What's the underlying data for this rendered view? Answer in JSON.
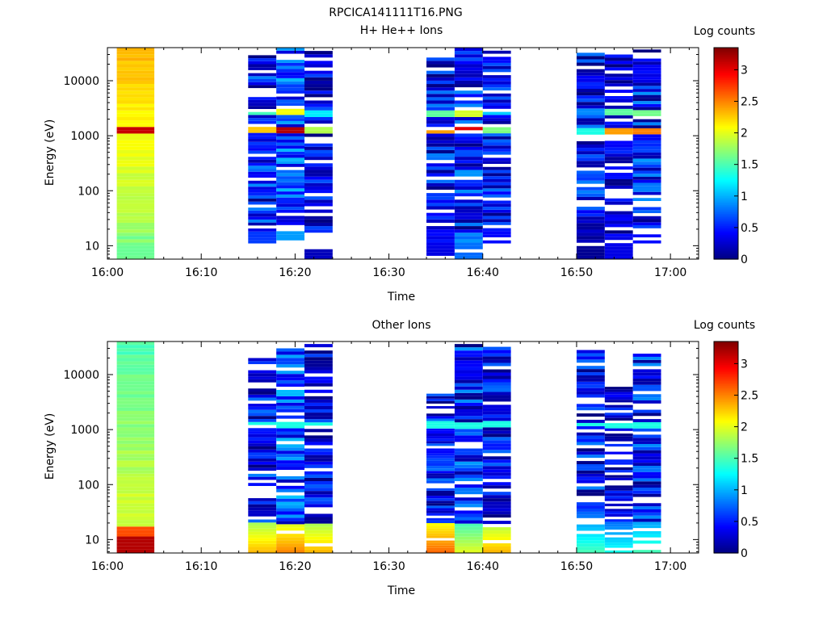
{
  "title": "RPCICA141111T16.PNG",
  "chart_data": [
    {
      "type": "heatmap",
      "title": "H+ He++ Ions",
      "xlabel": "Time",
      "ylabel": "Energy (eV)",
      "y_scale": "log",
      "xlim": [
        "16:00",
        "17:03"
      ],
      "ylim": [
        5.7,
        40000
      ],
      "x_ticks": [
        "16:00",
        "16:10",
        "16:20",
        "16:30",
        "16:40",
        "16:50",
        "17:00"
      ],
      "y_ticks": [
        "10",
        "100",
        "1000",
        "10000"
      ],
      "colorbar": {
        "label": "Log counts",
        "range": [
          0,
          3.35
        ],
        "ticks": [
          "0",
          "0.5",
          "1",
          "1.5",
          "2",
          "2.5",
          "3"
        ]
      },
      "columns": [
        {
          "t_start": "16:01",
          "t_end": "16:05",
          "e_min": 5.7,
          "e_max": 40000
        },
        {
          "t_start": "16:15",
          "t_end": "16:18",
          "e_min": 11,
          "e_max": 33000
        },
        {
          "t_start": "16:18",
          "t_end": "16:21",
          "e_min": 11,
          "e_max": 40000
        },
        {
          "t_start": "16:21",
          "t_end": "16:24",
          "e_min": 5.7,
          "e_max": 40000
        },
        {
          "t_start": "16:34",
          "t_end": "16:37",
          "e_min": 5.7,
          "e_max": 40000
        },
        {
          "t_start": "16:37",
          "t_end": "16:40",
          "e_min": 5.7,
          "e_max": 40000
        },
        {
          "t_start": "16:40",
          "t_end": "16:43",
          "e_min": 11,
          "e_max": 40000
        },
        {
          "t_start": "16:50",
          "t_end": "16:53",
          "e_min": 5.7,
          "e_max": 37000
        },
        {
          "t_start": "16:53",
          "t_end": "16:56",
          "e_min": 5.7,
          "e_max": 30000
        },
        {
          "t_start": "16:56",
          "t_end": "16:59",
          "e_min": 11,
          "e_max": 37000
        }
      ]
    },
    {
      "type": "heatmap",
      "title": "Other Ions",
      "xlabel": "Time",
      "ylabel": "Energy (eV)",
      "y_scale": "log",
      "xlim": [
        "16:00",
        "17:03"
      ],
      "ylim": [
        5.7,
        40000
      ],
      "x_ticks": [
        "16:00",
        "16:10",
        "16:20",
        "16:30",
        "16:40",
        "16:50",
        "17:00"
      ],
      "y_ticks": [
        "10",
        "100",
        "1000",
        "10000"
      ],
      "colorbar": {
        "label": "Log counts",
        "range": [
          0,
          3.35
        ],
        "ticks": [
          "0",
          "0.5",
          "1",
          "1.5",
          "2",
          "2.5",
          "3"
        ]
      },
      "columns": [
        {
          "t_start": "16:01",
          "t_end": "16:05",
          "e_min": 5.7,
          "e_max": 40000
        },
        {
          "t_start": "16:15",
          "t_end": "16:18",
          "e_min": 5.7,
          "e_max": 20000
        },
        {
          "t_start": "16:18",
          "t_end": "16:21",
          "e_min": 5.7,
          "e_max": 30000
        },
        {
          "t_start": "16:21",
          "t_end": "16:24",
          "e_min": 5.7,
          "e_max": 36000
        },
        {
          "t_start": "16:34",
          "t_end": "16:37",
          "e_min": 5.7,
          "e_max": 4500
        },
        {
          "t_start": "16:37",
          "t_end": "16:40",
          "e_min": 5.7,
          "e_max": 36000
        },
        {
          "t_start": "16:40",
          "t_end": "16:43",
          "e_min": 5.7,
          "e_max": 32000
        },
        {
          "t_start": "16:50",
          "t_end": "16:53",
          "e_min": 5.7,
          "e_max": 28000
        },
        {
          "t_start": "16:53",
          "t_end": "16:56",
          "e_min": 5.7,
          "e_max": 6000
        },
        {
          "t_start": "16:56",
          "t_end": "16:59",
          "e_min": 5.7,
          "e_max": 24000
        }
      ]
    }
  ]
}
